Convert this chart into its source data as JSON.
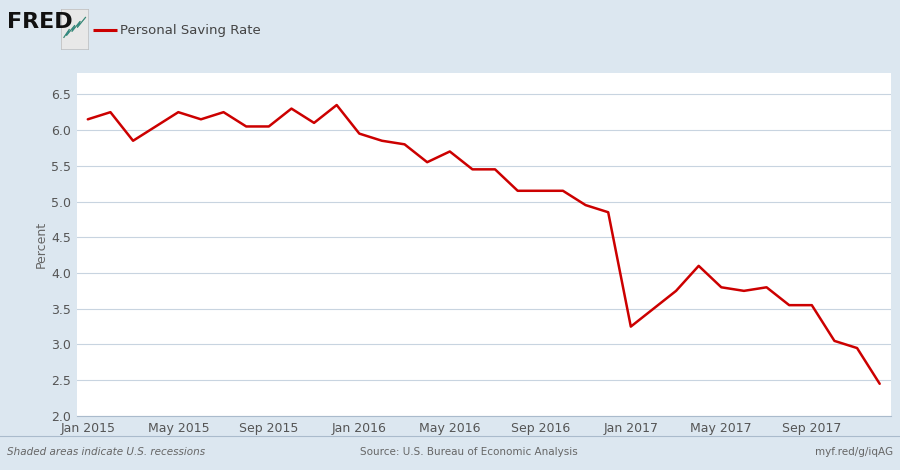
{
  "title": "Personal Saving Rate",
  "ylabel": "Percent",
  "line_color": "#cc0000",
  "background_color": "#dce7f0",
  "plot_background": "#ffffff",
  "grid_color": "#c8d4e0",
  "footer_left": "Shaded areas indicate U.S. recessions",
  "footer_center": "Source: U.S. Bureau of Economic Analysis",
  "footer_right": "myf.red/g/iqAG",
  "ylim": [
    2.0,
    6.8
  ],
  "yticks": [
    2.0,
    2.5,
    3.0,
    3.5,
    4.0,
    4.5,
    5.0,
    5.5,
    6.0,
    6.5
  ],
  "xtick_labels": [
    "Jan 2015",
    "May 2015",
    "Sep 2015",
    "Jan 2016",
    "May 2016",
    "Sep 2016",
    "Jan 2017",
    "May 2017",
    "Sep 2017"
  ],
  "values": [
    6.15,
    6.25,
    5.85,
    6.05,
    6.25,
    6.15,
    6.25,
    6.05,
    6.05,
    6.3,
    6.1,
    6.35,
    5.95,
    5.85,
    5.8,
    5.55,
    5.7,
    5.45,
    5.45,
    5.15,
    5.15,
    5.15,
    4.95,
    4.85,
    3.25,
    3.5,
    3.75,
    4.1,
    3.8,
    3.75,
    3.8,
    3.55,
    3.55,
    3.05,
    2.95,
    2.45
  ],
  "legend_line_color": "#cc0000",
  "fred_text": "FRED",
  "header_bg": "#dce7f0"
}
